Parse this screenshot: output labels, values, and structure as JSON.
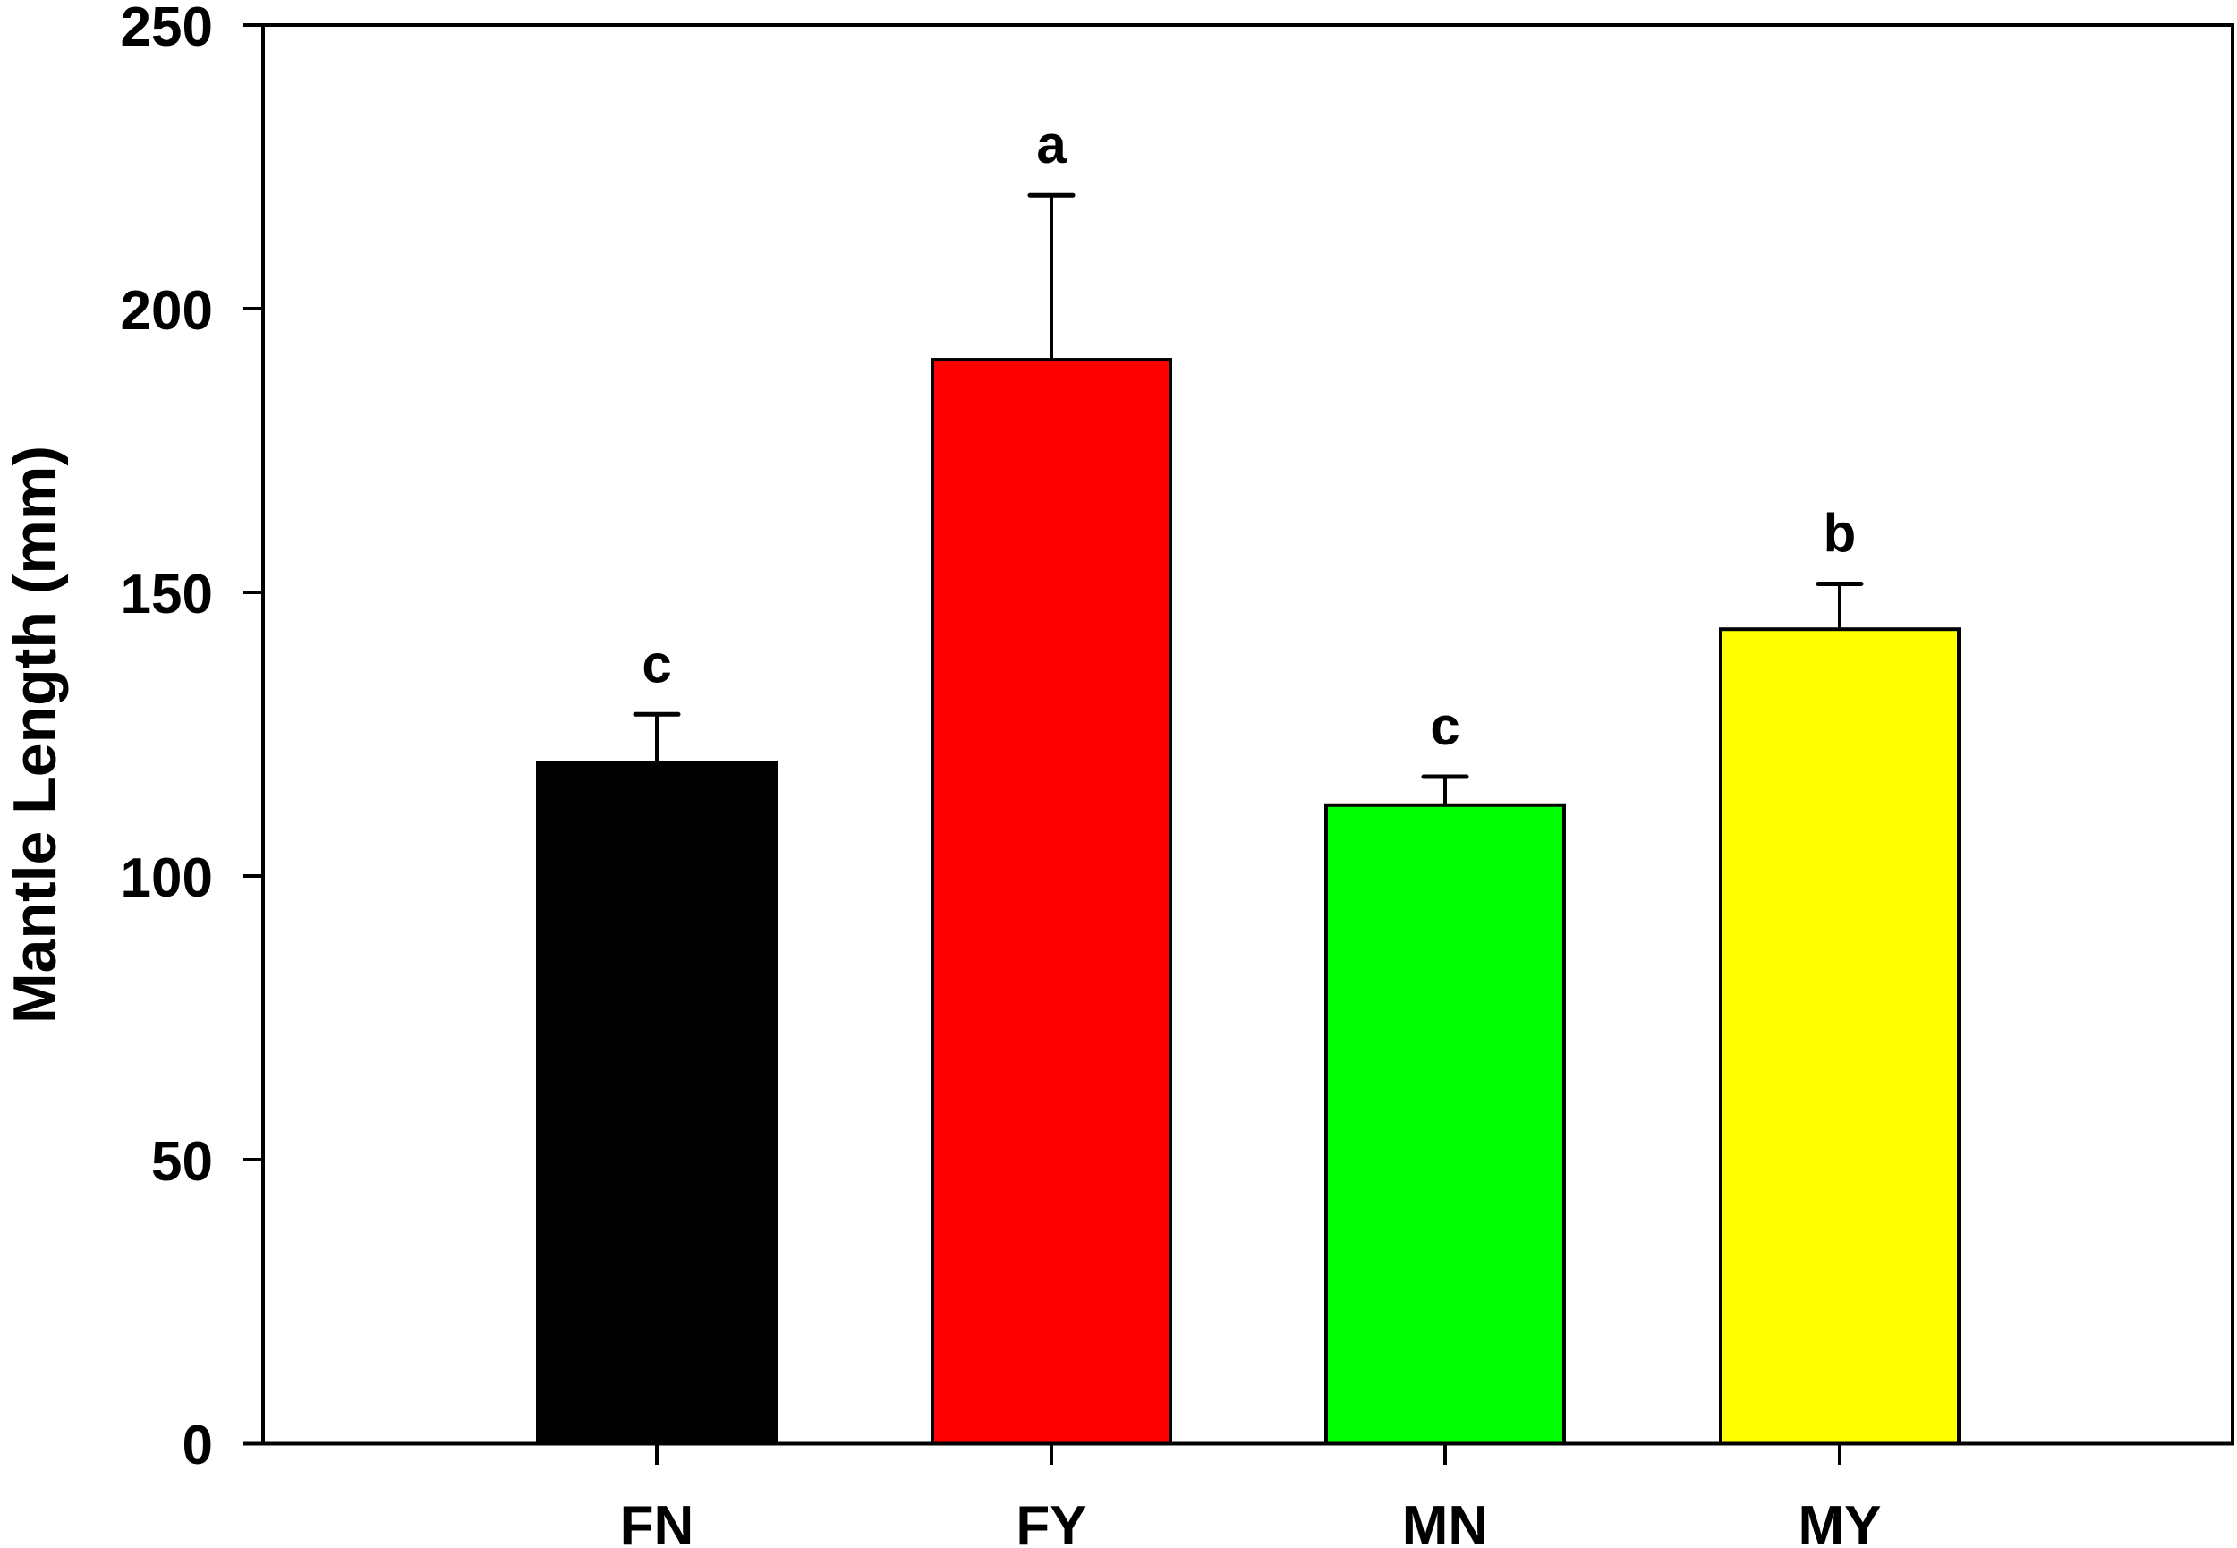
{
  "chart_data": {
    "type": "bar",
    "title": "",
    "xlabel": "",
    "ylabel": "Mantle Length (mm)",
    "ylim": [
      0,
      250
    ],
    "yticks": [
      0,
      50,
      100,
      150,
      200,
      250
    ],
    "grid": false,
    "legend": null,
    "categories": [
      "FN",
      "FY",
      "MN",
      "MY"
    ],
    "values": [
      120,
      191,
      112.5,
      143.5
    ],
    "error_bars": [
      8.5,
      29,
      5,
      8
    ],
    "significance_letters": [
      "c",
      "a",
      "c",
      "b"
    ],
    "colors": [
      "#000000",
      "#ff0000",
      "#00ff00",
      "#ffff00"
    ]
  }
}
